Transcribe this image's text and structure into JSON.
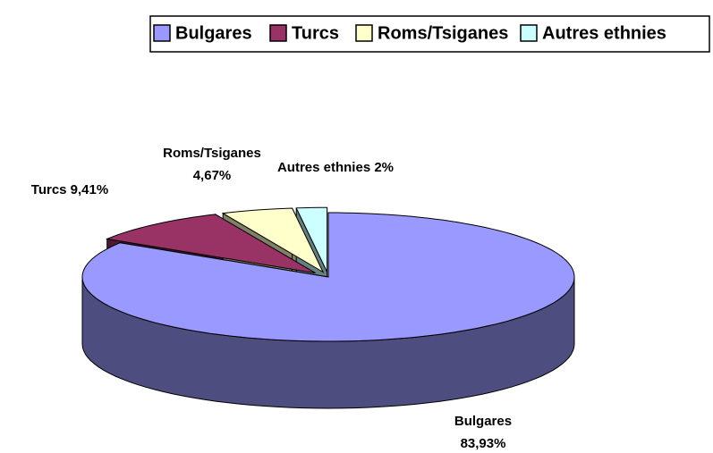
{
  "chart_data": {
    "type": "pie",
    "categories": [
      "Bulgares",
      "Turcs",
      "Roms/Tsiganes",
      "Autres ethnies"
    ],
    "values": [
      83.93,
      9.41,
      4.67,
      2
    ],
    "value_labels": [
      "83,93%",
      "9,41%",
      "4,67%",
      "2%"
    ],
    "colors": [
      "#9999ff",
      "#993366",
      "#ffffcc",
      "#ccffff"
    ],
    "legend": "top"
  }
}
